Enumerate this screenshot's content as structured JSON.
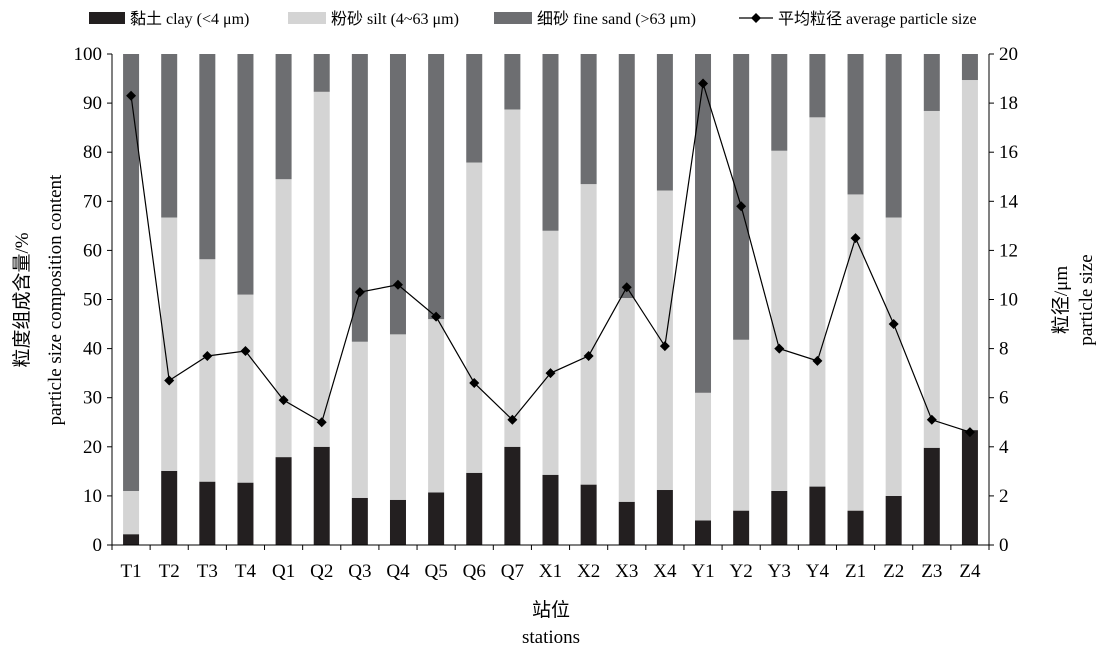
{
  "chart_data": {
    "type": "bar",
    "stacked": true,
    "categories": [
      "T1",
      "T2",
      "T3",
      "T4",
      "Q1",
      "Q2",
      "Q3",
      "Q4",
      "Q5",
      "Q6",
      "Q7",
      "X1",
      "X2",
      "X3",
      "X4",
      "Y1",
      "Y2",
      "Y3",
      "Y4",
      "Z1",
      "Z2",
      "Z3",
      "Z4"
    ],
    "series": [
      {
        "name": "黏土 clay (<4 μm)",
        "color": "#231f20",
        "values": [
          2.2,
          15.1,
          12.9,
          12.7,
          17.9,
          20.0,
          9.6,
          9.2,
          10.7,
          14.7,
          20.0,
          14.3,
          12.3,
          8.8,
          11.2,
          5.0,
          7.0,
          11.0,
          11.9,
          7.0,
          10.0,
          19.8,
          23.4
        ]
      },
      {
        "name": "粉砂 silt (4~63 μm)",
        "color": "#d4d4d4",
        "values": [
          8.8,
          51.6,
          45.3,
          38.3,
          56.6,
          72.3,
          31.8,
          33.7,
          35.3,
          63.2,
          68.7,
          49.7,
          61.2,
          41.5,
          61.0,
          26.0,
          34.8,
          69.3,
          75.2,
          64.4,
          56.7,
          68.6,
          71.3
        ]
      },
      {
        "name": "细砂 fine sand (>63 μm)",
        "color": "#6d6e71",
        "values": [
          89.0,
          33.3,
          41.8,
          49.0,
          25.5,
          7.7,
          58.6,
          57.1,
          54.0,
          22.1,
          11.3,
          36.0,
          26.5,
          49.7,
          27.8,
          69.0,
          58.2,
          19.7,
          12.9,
          28.6,
          33.3,
          11.6,
          5.3
        ]
      }
    ],
    "line": {
      "name": "平均粒径 average particle size",
      "axis": "right",
      "values": [
        18.3,
        6.7,
        7.7,
        7.9,
        5.9,
        5.0,
        10.3,
        10.6,
        9.3,
        6.6,
        5.1,
        7.0,
        7.7,
        10.5,
        8.1,
        18.8,
        13.8,
        8.0,
        7.5,
        12.5,
        9.0,
        5.1,
        4.6
      ]
    },
    "ylabel": [
      "粒度组成含量/%",
      "particle size composition content"
    ],
    "y2label": [
      "粒径/μm",
      "particle size"
    ],
    "xlabel": [
      "站位",
      "stations"
    ],
    "ylim": [
      0,
      100
    ],
    "y2lim": [
      0,
      20
    ],
    "yticks": [
      "0",
      "10",
      "20",
      "30",
      "40",
      "50",
      "60",
      "70",
      "80",
      "90",
      "100"
    ],
    "y2ticks": [
      "0",
      "2",
      "4",
      "6",
      "8",
      "10",
      "12",
      "14",
      "16",
      "18",
      "20"
    ],
    "legend": "top",
    "grid": false
  }
}
